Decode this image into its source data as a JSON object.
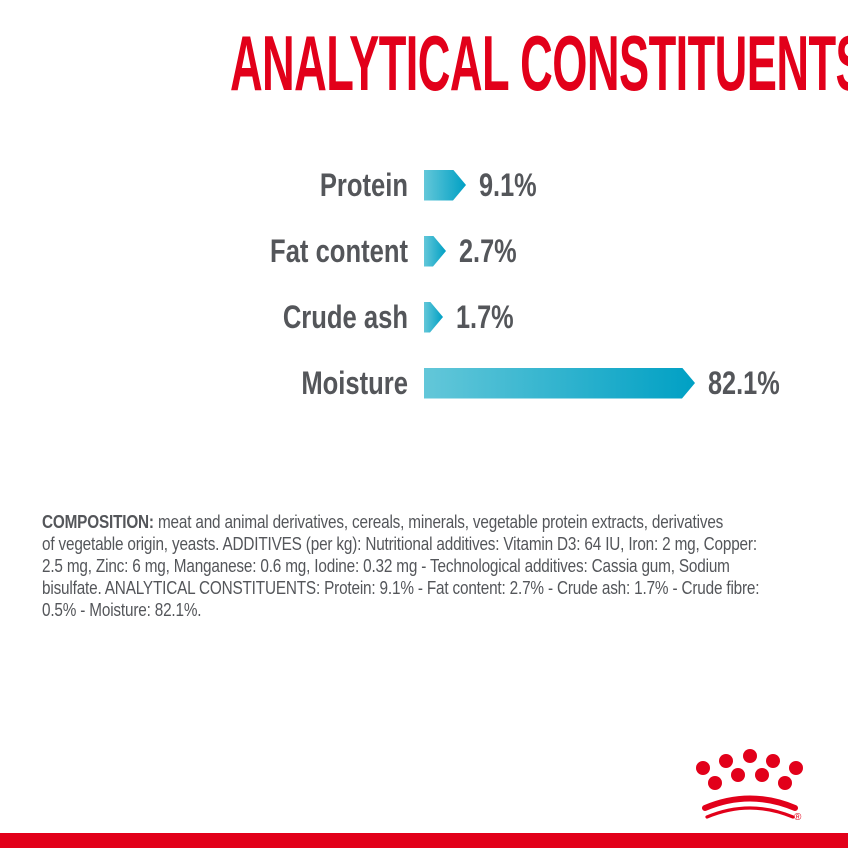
{
  "title": "ANALYTICAL CONSTITUENTS",
  "colors": {
    "brand_red": "#e2001a",
    "bar_teal_light": "#63c7d9",
    "bar_teal_dark": "#00a0c4",
    "text_gray": "#54565a"
  },
  "chart_data": {
    "type": "bar",
    "orientation": "horizontal",
    "title": "ANALYTICAL CONSTITUENTS",
    "categories": [
      "Protein",
      "Fat content",
      "Crude ash",
      "Moisture"
    ],
    "values": [
      9.1,
      2.7,
      1.7,
      82.1
    ],
    "value_labels": [
      "9.1%",
      "2.7%",
      "1.7%",
      "82.1%"
    ],
    "unit": "%",
    "xlim": [
      0,
      100
    ],
    "grid": false,
    "legend": false,
    "bar_style": "right-pointing arrow with teal gradient"
  },
  "composition": {
    "bold_label": "COMPOSITION:",
    "first_line_rest": " meat and animal derivatives, cereals, minerals, vegetable protein extracts, derivatives",
    "lines": [
      "of vegetable origin, yeasts. ADDITIVES (per kg): Nutritional additives: Vitamin D3: 64 IU, Iron: 2 mg, Copper:",
      "2.5 mg, Zinc: 6 mg, Manganese: 0.6 mg, Iodine: 0.32 mg - Technological additives: Cassia gum, Sodium",
      "bisulfate. ANALYTICAL CONSTITUENTS: Protein: 9.1% - Fat content: 2.7% - Crude ash: 1.7% - Crude fibre:",
      "0.5% - Moisture: 82.1%."
    ]
  },
  "brand": {
    "logo": "royal-canin-crown",
    "registered_mark": "®"
  }
}
